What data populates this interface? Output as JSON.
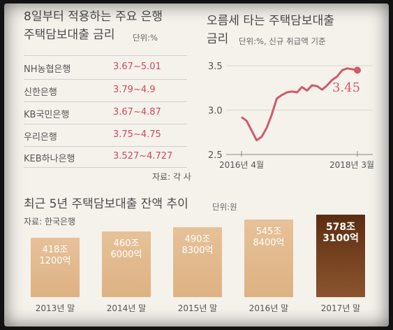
{
  "rates_table": {
    "title_line1": "8일부터 적용하는 주요 은행",
    "title_line2": "주택담보대출 금리",
    "unit": "단위:%",
    "rows": [
      {
        "bank": "NH농협은행",
        "rate": "3.67~5.01"
      },
      {
        "bank": "신한은행",
        "rate": "3.79~4.9"
      },
      {
        "bank": "KB국민은행",
        "rate": "3.67~4.87"
      },
      {
        "bank": "우리은행",
        "rate": "3.75~4.75"
      },
      {
        "bank": "KEB하나은행",
        "rate": "3.527~4.727"
      }
    ],
    "source": "자료: 각 사"
  },
  "colors": {
    "rate_text": "#d2475c",
    "line": "#cf5a6c",
    "bar_light": "#e3b98c",
    "bar_dark": "#6a3a1c"
  },
  "chart_data": [
    {
      "type": "line",
      "title_line1": "오름세 타는 주택담보대출",
      "title_line2": "금리",
      "unit": "단위:%, 신규 취급액 기준",
      "x_start_label": "2016년 4월",
      "x_end_label": "2018년 3월",
      "x": [
        "2016-04",
        "2016-05",
        "2016-06",
        "2016-07",
        "2016-08",
        "2016-09",
        "2016-10",
        "2016-11",
        "2016-12",
        "2017-01",
        "2017-02",
        "2017-03",
        "2017-04",
        "2017-05",
        "2017-06",
        "2017-07",
        "2017-08",
        "2017-09",
        "2017-10",
        "2017-11",
        "2017-12",
        "2018-01",
        "2018-02",
        "2018-03"
      ],
      "values": [
        2.92,
        2.88,
        2.77,
        2.66,
        2.7,
        2.8,
        2.95,
        3.13,
        3.17,
        3.2,
        3.21,
        3.2,
        3.26,
        3.22,
        3.28,
        3.27,
        3.23,
        3.28,
        3.34,
        3.38,
        3.45,
        3.47,
        3.46,
        3.45
      ],
      "yticks": [
        "2.5",
        "3.0",
        "3.5"
      ],
      "ylim": [
        2.5,
        3.5
      ],
      "last_value_label": "3.45"
    },
    {
      "type": "bar",
      "title": "최근 5년 주택담보대출 잔액 추이",
      "unit": "단위:원",
      "source": "자료: 한국은행",
      "categories": [
        "2013년 말",
        "2014년 말",
        "2015년 말",
        "2016년 말",
        "2017년 말"
      ],
      "values": [
        4181200,
        4606000,
        4908300,
        5458400,
        5783100
      ],
      "value_labels": [
        [
          "418조",
          "1200억"
        ],
        [
          "460조",
          "6000억"
        ],
        [
          "490조",
          "8300억"
        ],
        [
          "545조",
          "8400억"
        ],
        [
          "578조",
          "3100억"
        ]
      ]
    }
  ]
}
